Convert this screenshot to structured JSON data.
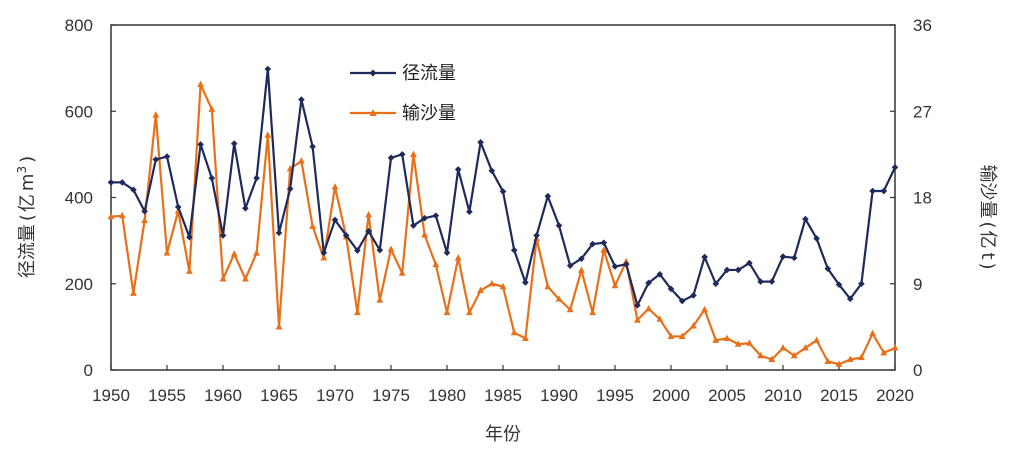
{
  "chart_data": {
    "type": "line",
    "xlabel": "年份",
    "ylabel_left": "径流量(亿m³)",
    "ylabel_right": "输沙量(亿t)",
    "ylabel_left_parts": [
      "径流量",
      "(",
      "亿",
      "m",
      "3",
      ")"
    ],
    "ylabel_right_parts": [
      "输沙量",
      "(",
      "亿",
      "t",
      ")"
    ],
    "xlim": [
      1950,
      2020
    ],
    "ylim_left": [
      0,
      800
    ],
    "ylim_right": [
      0,
      36
    ],
    "x_ticks": [
      1950,
      1955,
      1960,
      1965,
      1970,
      1975,
      1980,
      1985,
      1990,
      1995,
      2000,
      2005,
      2010,
      2015,
      2020
    ],
    "y_ticks_left": [
      0,
      200,
      400,
      600,
      800
    ],
    "y_ticks_right": [
      0,
      9,
      18,
      27,
      36
    ],
    "legend_position": "top-center",
    "years": [
      1950,
      1951,
      1952,
      1953,
      1954,
      1955,
      1956,
      1957,
      1958,
      1959,
      1960,
      1961,
      1962,
      1963,
      1964,
      1965,
      1966,
      1967,
      1968,
      1969,
      1970,
      1971,
      1972,
      1973,
      1974,
      1975,
      1976,
      1977,
      1978,
      1979,
      1980,
      1981,
      1982,
      1983,
      1984,
      1985,
      1986,
      1987,
      1988,
      1989,
      1990,
      1991,
      1992,
      1993,
      1994,
      1995,
      1996,
      1997,
      1998,
      1999,
      2000,
      2001,
      2002,
      2003,
      2004,
      2005,
      2006,
      2007,
      2008,
      2009,
      2010,
      2011,
      2012,
      2013,
      2014,
      2015,
      2016,
      2017,
      2018,
      2019,
      2020
    ],
    "series": [
      {
        "name": "径流量",
        "axis": "left",
        "color": "#1f2a5c",
        "marker": "diamond",
        "values": [
          435,
          435,
          418,
          368,
          488,
          495,
          378,
          308,
          523,
          445,
          312,
          525,
          375,
          445,
          698,
          318,
          420,
          627,
          518,
          272,
          348,
          312,
          277,
          322,
          278,
          492,
          500,
          335,
          352,
          358,
          272,
          465,
          367,
          528,
          462,
          414,
          278,
          203,
          312,
          403,
          335,
          242,
          258,
          292,
          295,
          240,
          245,
          150,
          202,
          222,
          188,
          160,
          173,
          262,
          200,
          232,
          232,
          248,
          205,
          205,
          263,
          260,
          350,
          305,
          235,
          198,
          165,
          200,
          415,
          415,
          470
        ]
      },
      {
        "name": "输沙量",
        "axis": "right",
        "color": "#e8701a",
        "marker": "triangle",
        "values": [
          16.0,
          16.1,
          8.0,
          15.6,
          26.6,
          12.2,
          16.6,
          10.3,
          29.8,
          27.2,
          9.5,
          12.1,
          9.5,
          12.2,
          24.5,
          4.5,
          21.0,
          21.8,
          15.0,
          11.7,
          19.1,
          13.9,
          6.0,
          16.2,
          7.3,
          12.6,
          10.1,
          22.5,
          14.1,
          11.0,
          6.0,
          11.7,
          6.0,
          8.3,
          9.0,
          8.7,
          3.9,
          3.3,
          13.7,
          8.7,
          7.4,
          6.3,
          10.4,
          6.0,
          12.5,
          8.8,
          11.3,
          5.2,
          6.4,
          5.3,
          3.5,
          3.5,
          4.6,
          6.3,
          3.1,
          3.3,
          2.7,
          2.8,
          1.5,
          1.1,
          2.3,
          1.5,
          2.3,
          3.1,
          0.9,
          0.6,
          1.1,
          1.3,
          3.8,
          1.8,
          2.3
        ]
      }
    ]
  }
}
